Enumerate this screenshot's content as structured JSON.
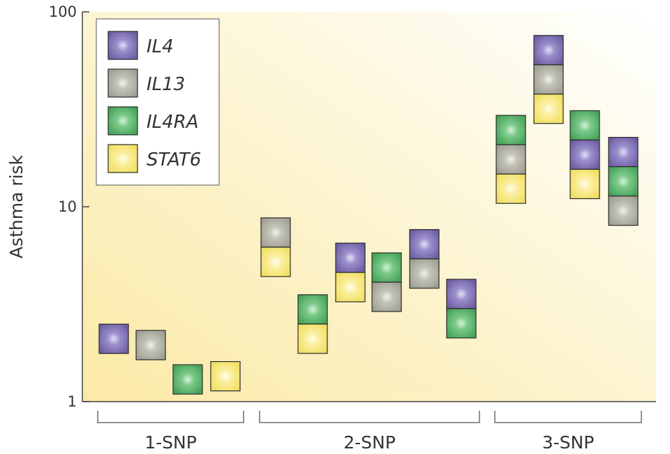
{
  "chart_data": {
    "type": "scatter",
    "ylabel": "Asthma risk",
    "yscale": "log",
    "ylim": [
      1,
      100
    ],
    "yticks": [
      "1",
      "10",
      "100"
    ],
    "groups": [
      {
        "label": "1-SNP",
        "from": 0,
        "to": 3
      },
      {
        "label": "2-SNP",
        "from": 4,
        "to": 9
      },
      {
        "label": "3-SNP",
        "from": 10,
        "to": 13
      }
    ],
    "legend": {
      "placement": "top-left",
      "entries": [
        {
          "key": "IL4",
          "label": "IL4",
          "color": "#7d6fae"
        },
        {
          "key": "IL13",
          "label": "IL13",
          "color": "#b2b2a6"
        },
        {
          "key": "IL4RA",
          "label": "IL4RA",
          "color": "#5bb46a"
        },
        {
          "key": "STAT6",
          "label": "STAT6",
          "color": "#f4e57a"
        }
      ]
    },
    "combinations": [
      {
        "genes": [
          "IL4"
        ],
        "risk": 2.1
      },
      {
        "genes": [
          "IL13"
        ],
        "risk": 1.95
      },
      {
        "genes": [
          "IL4RA"
        ],
        "risk": 1.3
      },
      {
        "genes": [
          "STAT6"
        ],
        "risk": 1.35
      },
      {
        "genes": [
          "IL13",
          "STAT6"
        ],
        "risk": 6.2
      },
      {
        "genes": [
          "IL4RA",
          "STAT6"
        ],
        "risk": 2.5
      },
      {
        "genes": [
          "IL4",
          "STAT6"
        ],
        "risk": 4.6
      },
      {
        "genes": [
          "IL4RA",
          "IL13"
        ],
        "risk": 4.1
      },
      {
        "genes": [
          "IL4",
          "IL13"
        ],
        "risk": 5.4
      },
      {
        "genes": [
          "IL4",
          "IL4RA"
        ],
        "risk": 3.0
      },
      {
        "genes": [
          "IL4RA",
          "IL13",
          "STAT6"
        ],
        "risk": 17.5
      },
      {
        "genes": [
          "IL4",
          "IL13",
          "STAT6"
        ],
        "risk": 45
      },
      {
        "genes": [
          "IL4RA",
          "IL4",
          "STAT6"
        ],
        "risk": 18.5
      },
      {
        "genes": [
          "IL4",
          "IL4RA",
          "IL13"
        ],
        "risk": 13.5
      }
    ]
  }
}
